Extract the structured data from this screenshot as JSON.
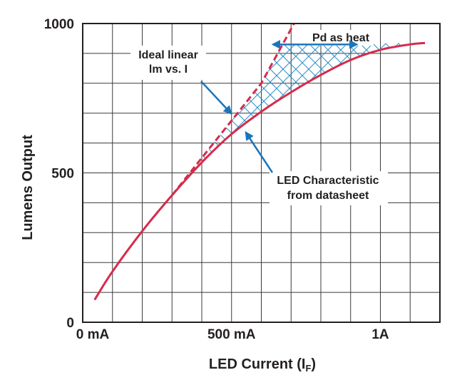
{
  "chart_data": {
    "type": "line",
    "title": "",
    "xlabel": "LED Current (I",
    "xlabel_subscript": "F",
    "xlabel_close": ")",
    "ylabel": "Lumens Output",
    "xlim": [
      0,
      1200
    ],
    "ylim": [
      0,
      1000
    ],
    "x_ticks": [
      {
        "value": 0,
        "label": "0 mA"
      },
      {
        "value": 500,
        "label": "500 mA"
      },
      {
        "value": 1000,
        "label": "1A"
      }
    ],
    "y_ticks": [
      {
        "value": 0,
        "label": "0"
      },
      {
        "value": 500,
        "label": "500"
      },
      {
        "value": 1000,
        "label": "1000"
      }
    ],
    "grid": true,
    "series": [
      {
        "name": "LED Characteristic from datasheet",
        "style": "solid",
        "color": "#d62b4b",
        "x": [
          40,
          100,
          200,
          300,
          400,
          500,
          600,
          700,
          800,
          900,
          1000,
          1100,
          1150
        ],
        "y": [
          75,
          170,
          305,
          425,
          535,
          630,
          705,
          770,
          828,
          878,
          912,
          930,
          935
        ]
      },
      {
        "name": "Ideal linear lm vs. I",
        "style": "dashed",
        "color": "#d62b4b",
        "x": [
          300,
          400,
          500,
          600,
          710
        ],
        "y": [
          425,
          550,
          675,
          800,
          1000
        ]
      }
    ],
    "annotations": [
      {
        "text_lines": [
          "Ideal linear",
          "lm vs. I"
        ],
        "points_to": "ideal-line"
      },
      {
        "text_lines": [
          "LED Characteristic",
          "from datasheet"
        ],
        "points_to": "led-curve"
      },
      {
        "text_lines": [
          "Pd as heat"
        ],
        "points_to": "hatched-region",
        "range_x": [
          640,
          920
        ],
        "at_y": 930
      }
    ]
  },
  "colors": {
    "curve": "#d62b4b",
    "arrow": "#1a75bb",
    "hatch": "#2a8ec9",
    "grid": "#3a3a3a",
    "text": "#231f20"
  }
}
